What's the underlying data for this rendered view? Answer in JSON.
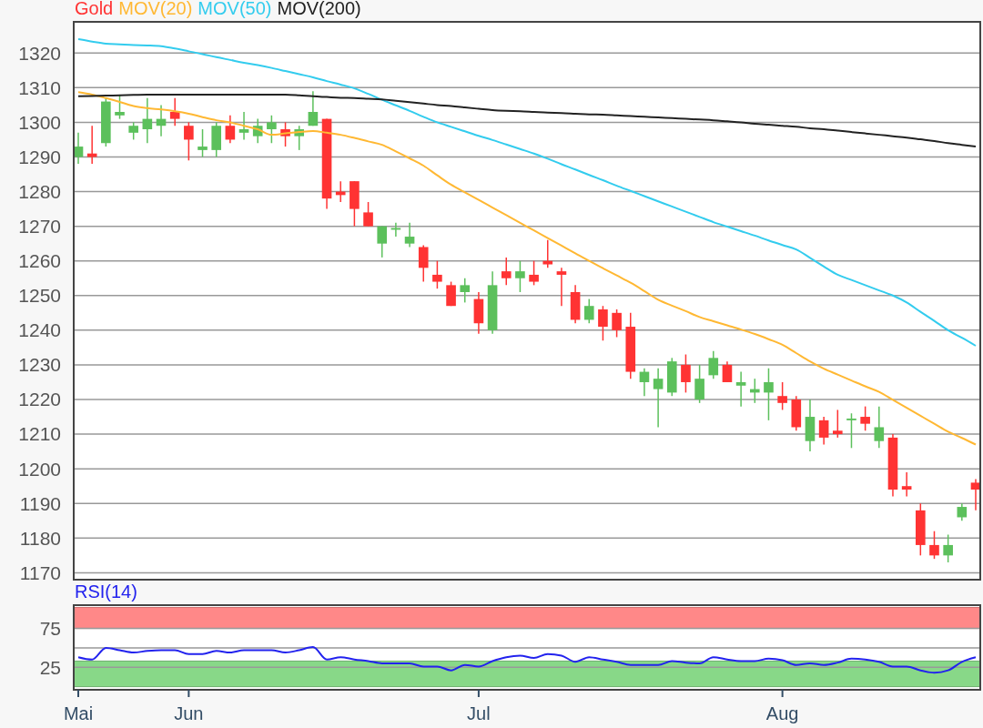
{
  "chart_data": [
    {
      "type": "candlestick",
      "legend": "top left",
      "tick_labels": "y",
      "grid": "y",
      "categories": [
        null,
        null,
        null,
        null,
        null,
        null,
        null,
        null,
        null,
        null,
        null,
        null,
        null,
        null,
        null,
        null,
        null,
        null,
        null,
        null,
        null,
        null,
        null,
        null,
        null,
        null,
        null,
        null,
        null,
        null,
        null,
        null,
        null,
        null,
        null,
        null,
        null,
        null,
        null,
        null,
        null,
        null,
        null,
        null,
        null,
        null,
        null,
        null,
        null,
        null,
        null,
        null,
        null,
        null,
        null,
        null,
        null,
        null,
        null,
        null,
        null,
        null,
        null,
        null,
        null,
        null
      ],
      "ylim": [
        1168,
        1329
      ],
      "yticks": [
        1170,
        1180,
        1190,
        1200,
        1210,
        1220,
        1230,
        1240,
        1250,
        1260,
        1270,
        1280,
        1290,
        1300,
        1310,
        1320
      ],
      "series": [
        {
          "name": "Gold",
          "color": "#ff3333",
          "ohlc": [
            [
              1290,
              1297,
              1288,
              1293
            ],
            [
              1291,
              1299,
              1288,
              1290
            ],
            [
              1294,
              1307,
              1293,
              1306
            ],
            [
              1302,
              1308,
              1301,
              1303
            ],
            [
              1297,
              1300,
              1295,
              1299
            ],
            [
              1298,
              1307,
              1294,
              1301
            ],
            [
              1299,
              1305,
              1296,
              1301
            ],
            [
              1303,
              1307,
              1299,
              1301
            ],
            [
              1299,
              1300,
              1289,
              1295
            ],
            [
              1292,
              1298,
              1290,
              1293
            ],
            [
              1292,
              1300,
              1290,
              1299
            ],
            [
              1299,
              1302,
              1294,
              1295
            ],
            [
              1297,
              1303,
              1295,
              1298
            ],
            [
              1296,
              1301,
              1294,
              1299
            ],
            [
              1298,
              1302,
              1294,
              1300
            ],
            [
              1298,
              1300,
              1293,
              1296
            ],
            [
              1296,
              1299,
              1292,
              1298
            ],
            [
              1299,
              1309,
              1299,
              1303
            ],
            [
              1301,
              1301,
              1275,
              1278
            ],
            [
              1280,
              1283,
              1277,
              1279
            ],
            [
              1283,
              1283,
              1270,
              1275
            ],
            [
              1274,
              1277,
              1270,
              1270
            ],
            [
              1265,
              1270,
              1261,
              1270
            ],
            [
              1269,
              1271,
              1267,
              1269.5
            ],
            [
              1265,
              1271,
              1264,
              1267
            ],
            [
              1264,
              1264.5,
              1254,
              1258
            ],
            [
              1256,
              1260,
              1252,
              1254
            ],
            [
              1253,
              1254,
              1247,
              1247
            ],
            [
              1251,
              1255,
              1248,
              1253
            ],
            [
              1249,
              1251,
              1239,
              1242
            ],
            [
              1240,
              1257,
              1239,
              1253
            ],
            [
              1257,
              1261,
              1253,
              1255
            ],
            [
              1255,
              1260,
              1251,
              1257
            ],
            [
              1256,
              1260,
              1253,
              1254
            ],
            [
              1260,
              1266,
              1258,
              1259
            ],
            [
              1257,
              1258,
              1247,
              1256
            ],
            [
              1251,
              1253,
              1242,
              1243
            ],
            [
              1243,
              1249,
              1242,
              1247
            ],
            [
              1246,
              1247,
              1237,
              1241
            ],
            [
              1245,
              1246,
              1238,
              1240
            ],
            [
              1241,
              1245,
              1226,
              1228
            ],
            [
              1225,
              1229,
              1221,
              1228
            ],
            [
              1223,
              1229,
              1212,
              1226
            ],
            [
              1222,
              1232,
              1221,
              1231
            ],
            [
              1230,
              1233,
              1222,
              1225
            ],
            [
              1220,
              1230,
              1219,
              1226
            ],
            [
              1227,
              1234,
              1226,
              1232
            ],
            [
              1230,
              1231,
              1225,
              1225
            ],
            [
              1224,
              1228,
              1218,
              1225
            ],
            [
              1222,
              1226,
              1219,
              1223
            ],
            [
              1222,
              1229,
              1214,
              1225
            ],
            [
              1221,
              1225,
              1217,
              1219
            ],
            [
              1220,
              1221,
              1211,
              1212
            ],
            [
              1208,
              1220,
              1205,
              1215
            ],
            [
              1214,
              1215,
              1207,
              1209
            ],
            [
              1211,
              1217,
              1209,
              1210
            ],
            [
              1214,
              1216,
              1206,
              1214.5
            ],
            [
              1215,
              1218,
              1211,
              1213
            ],
            [
              1208,
              1218,
              1206,
              1212
            ],
            [
              1209,
              1210,
              1192,
              1194
            ],
            [
              1195,
              1199,
              1192,
              1194
            ],
            [
              1188,
              1190,
              1175,
              1178
            ],
            [
              1178,
              1182,
              1174,
              1175
            ],
            [
              1175,
              1181,
              1173,
              1178
            ],
            [
              1186,
              1190,
              1185,
              1189
            ],
            [
              1196,
              1197,
              1188,
              1194
            ]
          ],
          "colors": [
            "#5cc05c",
            "#ff3333",
            "#5cc05c",
            "#5cc05c",
            "#5cc05c",
            "#5cc05c",
            "#5cc05c",
            "#ff3333",
            "#ff3333",
            "#5cc05c",
            "#5cc05c",
            "#ff3333",
            "#5cc05c",
            "#5cc05c",
            "#5cc05c",
            "#ff3333",
            "#5cc05c",
            "#5cc05c",
            "#ff3333",
            "#ff3333",
            "#ff3333",
            "#ff3333",
            "#5cc05c",
            "#5cc05c",
            "#5cc05c",
            "#ff3333",
            "#ff3333",
            "#ff3333",
            "#5cc05c",
            "#ff3333",
            "#5cc05c",
            "#ff3333",
            "#5cc05c",
            "#ff3333",
            "#ff3333",
            "#ff3333",
            "#ff3333",
            "#5cc05c",
            "#ff3333",
            "#ff3333",
            "#ff3333",
            "#5cc05c",
            "#5cc05c",
            "#5cc05c",
            "#ff3333",
            "#5cc05c",
            "#5cc05c",
            "#ff3333",
            "#5cc05c",
            "#5cc05c",
            "#5cc05c",
            "#ff3333",
            "#ff3333",
            "#5cc05c",
            "#ff3333",
            "#ff3333",
            "#5cc05c",
            "#ff3333",
            "#5cc05c",
            "#ff3333",
            "#ff3333",
            "#ff3333",
            "#ff3333",
            "#5cc05c",
            "#5cc05c",
            "#ff3333"
          ]
        },
        {
          "name": "MOV(20)",
          "type": "line",
          "color": "#ffb833",
          "values": [
            1308.7,
            1308,
            1307,
            1305.9,
            1304.7,
            1304.1,
            1303.7,
            1303.2,
            1302.5,
            1301.5,
            1300.6,
            1300,
            1299,
            1298,
            1296.4,
            1296.8,
            1297.2,
            1297.5,
            1297,
            1296.4,
            1295.5,
            1294.5,
            1293.5,
            1291.6,
            1289.6,
            1287.5,
            1284.7,
            1282,
            1279.8,
            1277.6,
            1275.4,
            1273.2,
            1271,
            1268.8,
            1266.6,
            1264.4,
            1262.2,
            1260,
            1257.9,
            1255.8,
            1253.7,
            1251.3,
            1248.8,
            1247.1,
            1245.5,
            1243.8,
            1242.6,
            1241.4,
            1240.2,
            1238.9,
            1237.4,
            1235.8,
            1233.4,
            1231,
            1228.9,
            1227.2,
            1225.5,
            1223.8,
            1222.2,
            1219.9,
            1217.6,
            1215.3,
            1213,
            1210.7,
            1208.9,
            1207
          ]
        },
        {
          "name": "MOV(50)",
          "type": "line",
          "color": "#33ccee",
          "values": [
            1324,
            1323.3,
            1322.7,
            1322.5,
            1322.3,
            1322.2,
            1322,
            1321.3,
            1320.5,
            1319.7,
            1318.8,
            1318,
            1317.2,
            1316.5,
            1315.7,
            1314.8,
            1313.9,
            1313,
            1311.9,
            1310.9,
            1309.8,
            1308.2,
            1306.5,
            1304.9,
            1303.3,
            1301.6,
            1300,
            1298.7,
            1297.4,
            1296.1,
            1294.9,
            1293.6,
            1292.3,
            1291,
            1289.5,
            1287.9,
            1286.4,
            1284.8,
            1283.3,
            1281.7,
            1280.2,
            1278.7,
            1277.2,
            1275.7,
            1274.2,
            1272.7,
            1271.2,
            1269.9,
            1268.6,
            1267.3,
            1265.9,
            1264.6,
            1263.3,
            1260.9,
            1258.4,
            1256,
            1254.5,
            1253,
            1251.5,
            1250,
            1248,
            1245.3,
            1242.7,
            1240,
            1237.8,
            1235.5
          ]
        },
        {
          "name": "MOV(200)",
          "type": "line",
          "color": "#222222",
          "values": [
            1307.5,
            1307.6,
            1307.7,
            1307.8,
            1307.9,
            1308,
            1308,
            1308,
            1308,
            1308,
            1308,
            1308,
            1308,
            1308,
            1308,
            1308,
            1307.8,
            1307.5,
            1307.3,
            1307.1,
            1307,
            1306.8,
            1306.6,
            1306.2,
            1305.8,
            1305.4,
            1305,
            1304.7,
            1304.3,
            1303.9,
            1303.5,
            1303.3,
            1303.2,
            1303,
            1302.8,
            1302.7,
            1302.5,
            1302.3,
            1302.2,
            1302,
            1301.8,
            1301.6,
            1301.4,
            1301.2,
            1301,
            1300.8,
            1300.6,
            1300.3,
            1300,
            1299.6,
            1299.3,
            1299,
            1298.7,
            1298.3,
            1298,
            1297.6,
            1297.2,
            1296.8,
            1296.4,
            1296,
            1295.6,
            1295.1,
            1294.6,
            1294,
            1293.5,
            1293
          ]
        }
      ]
    },
    {
      "type": "line",
      "legend": "top left",
      "grid": "y",
      "categories": [
        "Mai",
        null,
        null,
        null,
        null,
        null,
        null,
        null,
        "Jun",
        null,
        null,
        null,
        null,
        null,
        null,
        null,
        null,
        null,
        null,
        null,
        null,
        null,
        null,
        null,
        null,
        null,
        null,
        null,
        null,
        "Jul",
        null,
        null,
        null,
        null,
        null,
        null,
        null,
        null,
        null,
        null,
        null,
        null,
        null,
        null,
        null,
        null,
        null,
        null,
        null,
        null,
        null,
        "Aug",
        null,
        null,
        null,
        null,
        null,
        null,
        null,
        null,
        null,
        null,
        null,
        null,
        null,
        null
      ],
      "ylim": [
        -4,
        105
      ],
      "yticks": [
        25,
        {
          "value": 50,
          "label": null
        },
        75
      ],
      "bands": [
        {
          "axis": "y",
          "from": 75,
          "to": 102,
          "color": "#ff8888"
        },
        {
          "axis": "y",
          "from": 0,
          "to": 33,
          "color": "#88d888"
        }
      ],
      "series": [
        {
          "name": "RSI(14)",
          "color": "#2222ee",
          "values": [
            38,
            35,
            50,
            47,
            44,
            46,
            47,
            47,
            42,
            42,
            46,
            44,
            47,
            47,
            47,
            44,
            47,
            51,
            35,
            38,
            35,
            33,
            30,
            30,
            30,
            26,
            26,
            21,
            28,
            26,
            33,
            38,
            40,
            37,
            42,
            40,
            32,
            38,
            35,
            32,
            28,
            28,
            28,
            33,
            31,
            30,
            38,
            35,
            33,
            33,
            36,
            34,
            28,
            30,
            28,
            31,
            36,
            35,
            32,
            26,
            26,
            21,
            18,
            21,
            32,
            38
          ]
        }
      ]
    }
  ]
}
